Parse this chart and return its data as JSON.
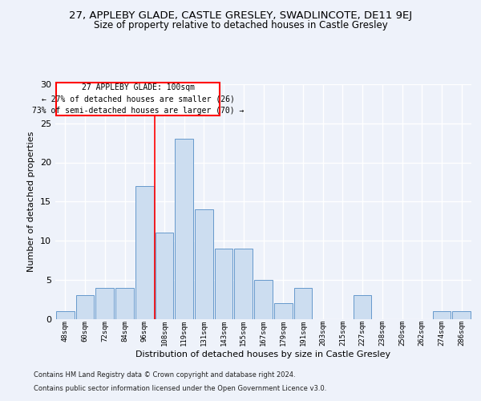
{
  "title1": "27, APPLEBY GLADE, CASTLE GRESLEY, SWADLINCOTE, DE11 9EJ",
  "title2": "Size of property relative to detached houses in Castle Gresley",
  "xlabel": "Distribution of detached houses by size in Castle Gresley",
  "ylabel": "Number of detached properties",
  "categories": [
    "48sqm",
    "60sqm",
    "72sqm",
    "84sqm",
    "96sqm",
    "108sqm",
    "119sqm",
    "131sqm",
    "143sqm",
    "155sqm",
    "167sqm",
    "179sqm",
    "191sqm",
    "203sqm",
    "215sqm",
    "227sqm",
    "238sqm",
    "250sqm",
    "262sqm",
    "274sqm",
    "286sqm"
  ],
  "values": [
    1,
    3,
    4,
    4,
    17,
    11,
    23,
    14,
    9,
    9,
    5,
    2,
    4,
    0,
    0,
    3,
    0,
    0,
    0,
    1,
    1
  ],
  "bar_color": "#ccddf0",
  "bar_edge_color": "#6699cc",
  "annotation_title": "27 APPLEBY GLADE: 100sqm",
  "annotation_line1": "← 27% of detached houses are smaller (26)",
  "annotation_line2": "73% of semi-detached houses are larger (70) →",
  "ylim": [
    0,
    30
  ],
  "yticks": [
    0,
    5,
    10,
    15,
    20,
    25,
    30
  ],
  "footer1": "Contains HM Land Registry data © Crown copyright and database right 2024.",
  "footer2": "Contains public sector information licensed under the Open Government Licence v3.0.",
  "bg_color": "#eef2fa",
  "grid_color": "#ffffff",
  "title1_fontsize": 9.5,
  "title2_fontsize": 8.5
}
